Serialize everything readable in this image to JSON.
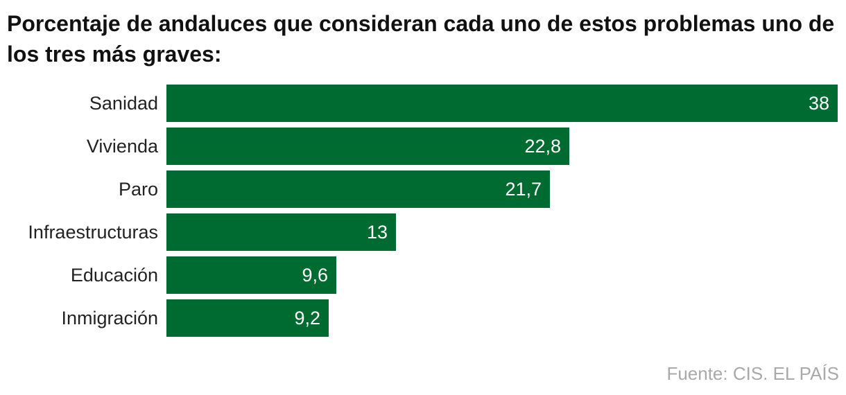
{
  "chart_data": {
    "type": "bar",
    "orientation": "horizontal",
    "title": "Porcentaje de andaluces que consideran cada uno de estos problemas uno de los tres más graves:",
    "categories": [
      "Sanidad",
      "Vivienda",
      "Paro",
      "Infraestructuras",
      "Educación",
      "Inmigración"
    ],
    "values": [
      38,
      22.8,
      21.7,
      13,
      9.6,
      9.2
    ],
    "value_labels": [
      "38",
      "22,8",
      "21,7",
      "13",
      "9,6",
      "9,2"
    ],
    "xlim": [
      0,
      38
    ],
    "grid": false,
    "legend": "none",
    "bar_color": "#006b30",
    "source": "Fuente: CIS. EL PAÍS"
  }
}
